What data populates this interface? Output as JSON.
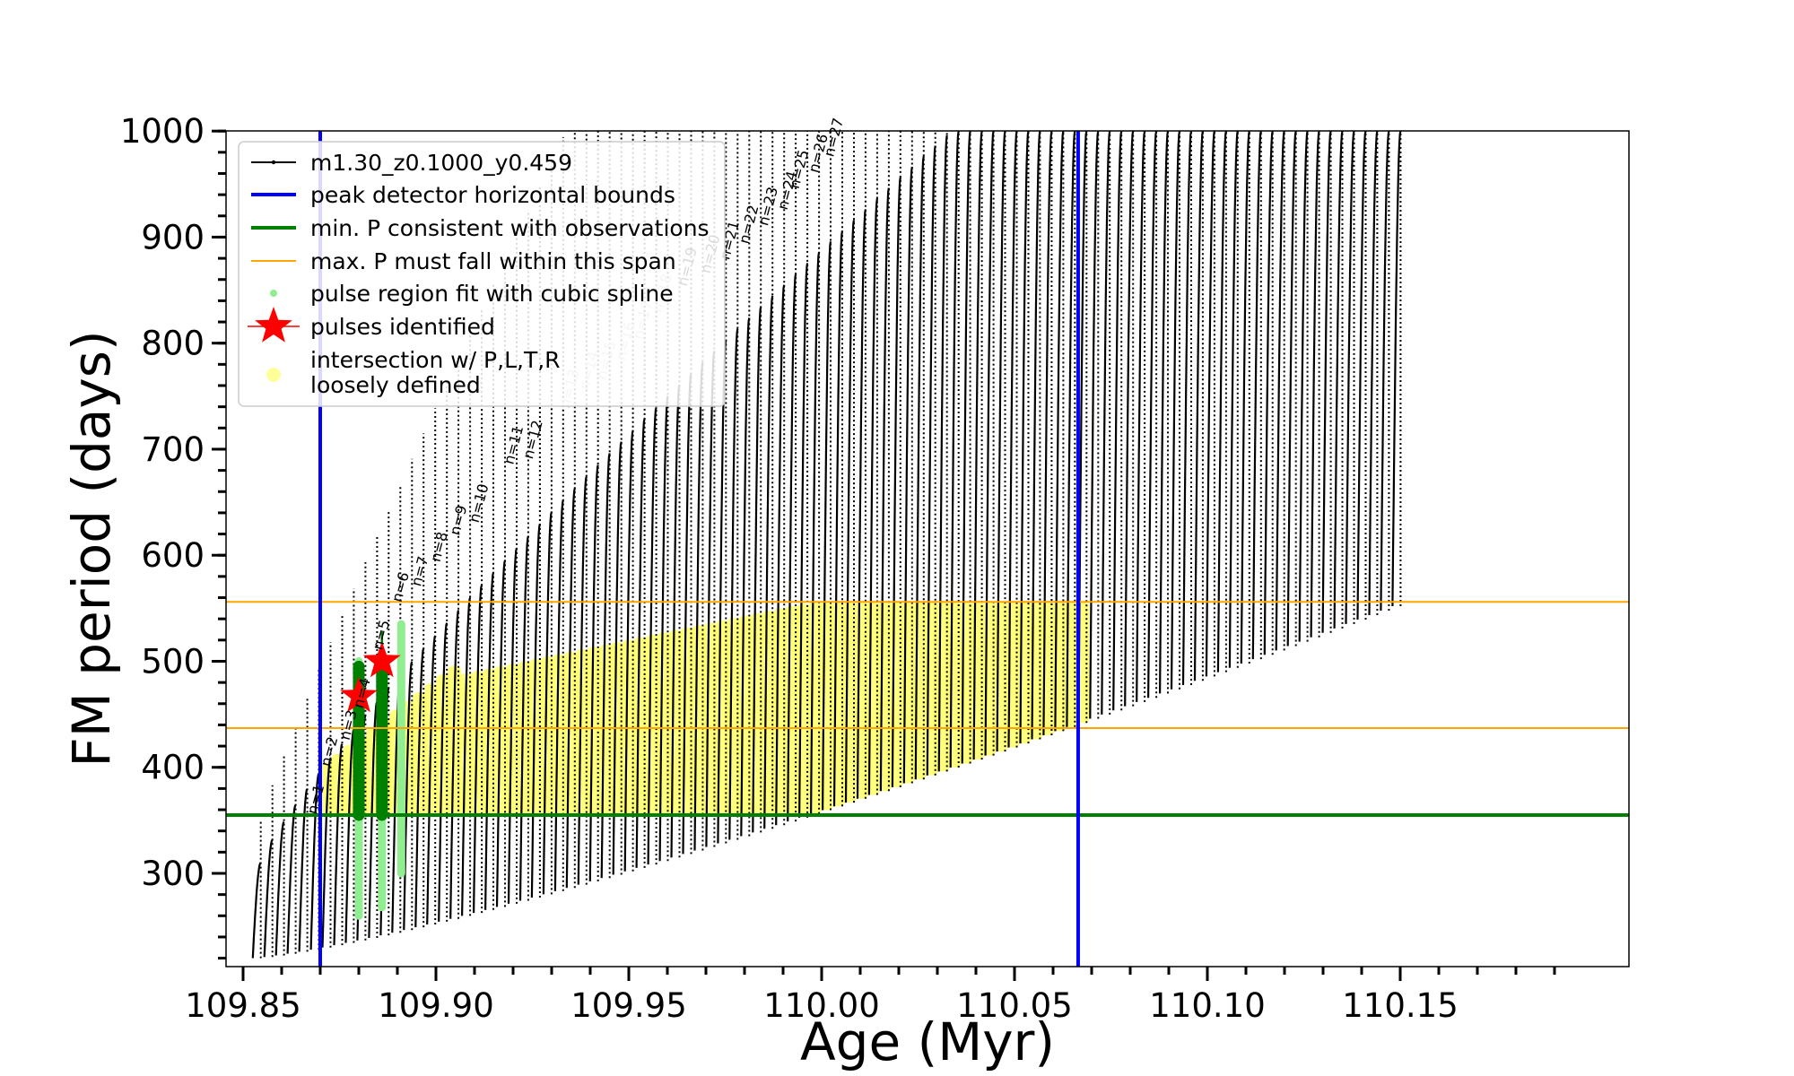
{
  "chart_data": {
    "type": "scatter",
    "title": "",
    "xlabel": "Age (Myr)",
    "ylabel": "FM period (days)",
    "xlim": [
      109.8365,
      110.1965
    ],
    "ylim": [
      210,
      1000
    ],
    "x_ticks": [
      "109.85",
      "109.90",
      "109.95",
      "110.00",
      "110.05",
      "110.10",
      "110.15"
    ],
    "x_tick_values": [
      109.85,
      109.9,
      109.95,
      110.0,
      110.05,
      110.1,
      110.15
    ],
    "y_ticks": [
      "300",
      "400",
      "500",
      "600",
      "700",
      "800",
      "900",
      "1000"
    ],
    "y_tick_values": [
      300,
      400,
      500,
      600,
      700,
      800,
      900,
      1000
    ],
    "grid": false,
    "legend_position": "upper-left",
    "legend": [
      {
        "label": "m1.30_z0.1000_y0.459",
        "kind": "line-marker",
        "color": "#000000"
      },
      {
        "label": "peak detector horizontal bounds",
        "kind": "line",
        "color": "#0000ff"
      },
      {
        "label": "min. P consistent with observations",
        "kind": "line",
        "color": "#008000"
      },
      {
        "label": "max. P must fall within this span",
        "kind": "line",
        "color": "#ffa500"
      },
      {
        "label": "pulse region fit with cubic spline",
        "kind": "dot",
        "color": "#90ee90"
      },
      {
        "label": "pulses identified",
        "kind": "star",
        "color": "#ff0000"
      },
      {
        "label": "intersection w/ P,L,T,R",
        "label2": "loosely defined",
        "kind": "dot",
        "color": "#ffff99"
      }
    ],
    "vertical_lines": [
      {
        "x": 109.87,
        "color": "#0000ff",
        "name": "peak detector horizontal bounds"
      },
      {
        "x": 110.0665,
        "color": "#0000ff",
        "name": "peak detector horizontal bounds"
      }
    ],
    "horizontal_lines": [
      {
        "y": 355,
        "color": "#008000",
        "name": "min. P consistent with observations"
      },
      {
        "y": 437,
        "color": "#ffa500",
        "name": "max. P span lower"
      },
      {
        "y": 556,
        "color": "#ffa500",
        "name": "max. P span upper"
      }
    ],
    "pulses": {
      "count": 99,
      "start_age": 109.8525,
      "end_age": 110.148,
      "label_color_dark": "#000000",
      "label_color_faint": "#bbbbbb",
      "labels": [
        {
          "text": "n=1",
          "x": 109.869,
          "y": 355
        },
        {
          "text": "n=2",
          "x": 109.8725,
          "y": 400
        },
        {
          "text": "n=3",
          "x": 109.8775,
          "y": 425
        },
        {
          "text": "n=4",
          "x": 109.881,
          "y": 455
        },
        {
          "text": "n=5",
          "x": 109.886,
          "y": 510
        },
        {
          "text": "n=6",
          "x": 109.891,
          "y": 555
        },
        {
          "text": "n=7",
          "x": 109.896,
          "y": 570
        },
        {
          "text": "n=8",
          "x": 109.901,
          "y": 593
        },
        {
          "text": "n=9",
          "x": 109.906,
          "y": 618
        },
        {
          "text": "n=10",
          "x": 109.911,
          "y": 630
        },
        {
          "text": "n=11",
          "x": 109.92,
          "y": 685
        },
        {
          "text": "n=12",
          "x": 109.925,
          "y": 690
        },
        {
          "text": "n=13",
          "x": 109.9345,
          "y": 738
        },
        {
          "text": "n=14",
          "x": 109.9395,
          "y": 755
        },
        {
          "text": "n=15",
          "x": 109.944,
          "y": 765
        },
        {
          "text": "n=16",
          "x": 109.949,
          "y": 783
        },
        {
          "text": "n=17",
          "x": 109.9535,
          "y": 803
        },
        {
          "text": "n=18",
          "x": 109.9585,
          "y": 828
        },
        {
          "text": "n=19",
          "x": 109.965,
          "y": 853
        },
        {
          "text": "n=20",
          "x": 109.971,
          "y": 865
        },
        {
          "text": "n=21",
          "x": 109.976,
          "y": 878
        },
        {
          "text": "n=22",
          "x": 109.981,
          "y": 893
        },
        {
          "text": "n=23",
          "x": 109.986,
          "y": 910
        },
        {
          "text": "n=24",
          "x": 109.991,
          "y": 925
        },
        {
          "text": "n=25",
          "x": 109.994,
          "y": 945
        },
        {
          "text": "n=26",
          "x": 109.999,
          "y": 960
        },
        {
          "text": "n=27",
          "x": 110.003,
          "y": 975
        }
      ]
    },
    "identified_pulses": [
      {
        "x": 109.88,
        "y": 467,
        "color": "#ff0000"
      },
      {
        "x": 109.886,
        "y": 500,
        "color": "#ff0000"
      }
    ],
    "series": [
      {
        "name": "m1.30_z0.1000_y0.459",
        "color": "#000000",
        "description_values": {
          "trough_start": 220,
          "trough_end": 552,
          "peak_start": 310,
          "peak_end": 1000
        }
      },
      {
        "name": "pulse region fit with cubic spline",
        "color": "#90ee90"
      },
      {
        "name": "pulses identified",
        "color": "#ff0000"
      },
      {
        "name": "intersection w/ P,L,T,R loosely defined",
        "color": "#ffff66"
      }
    ]
  }
}
